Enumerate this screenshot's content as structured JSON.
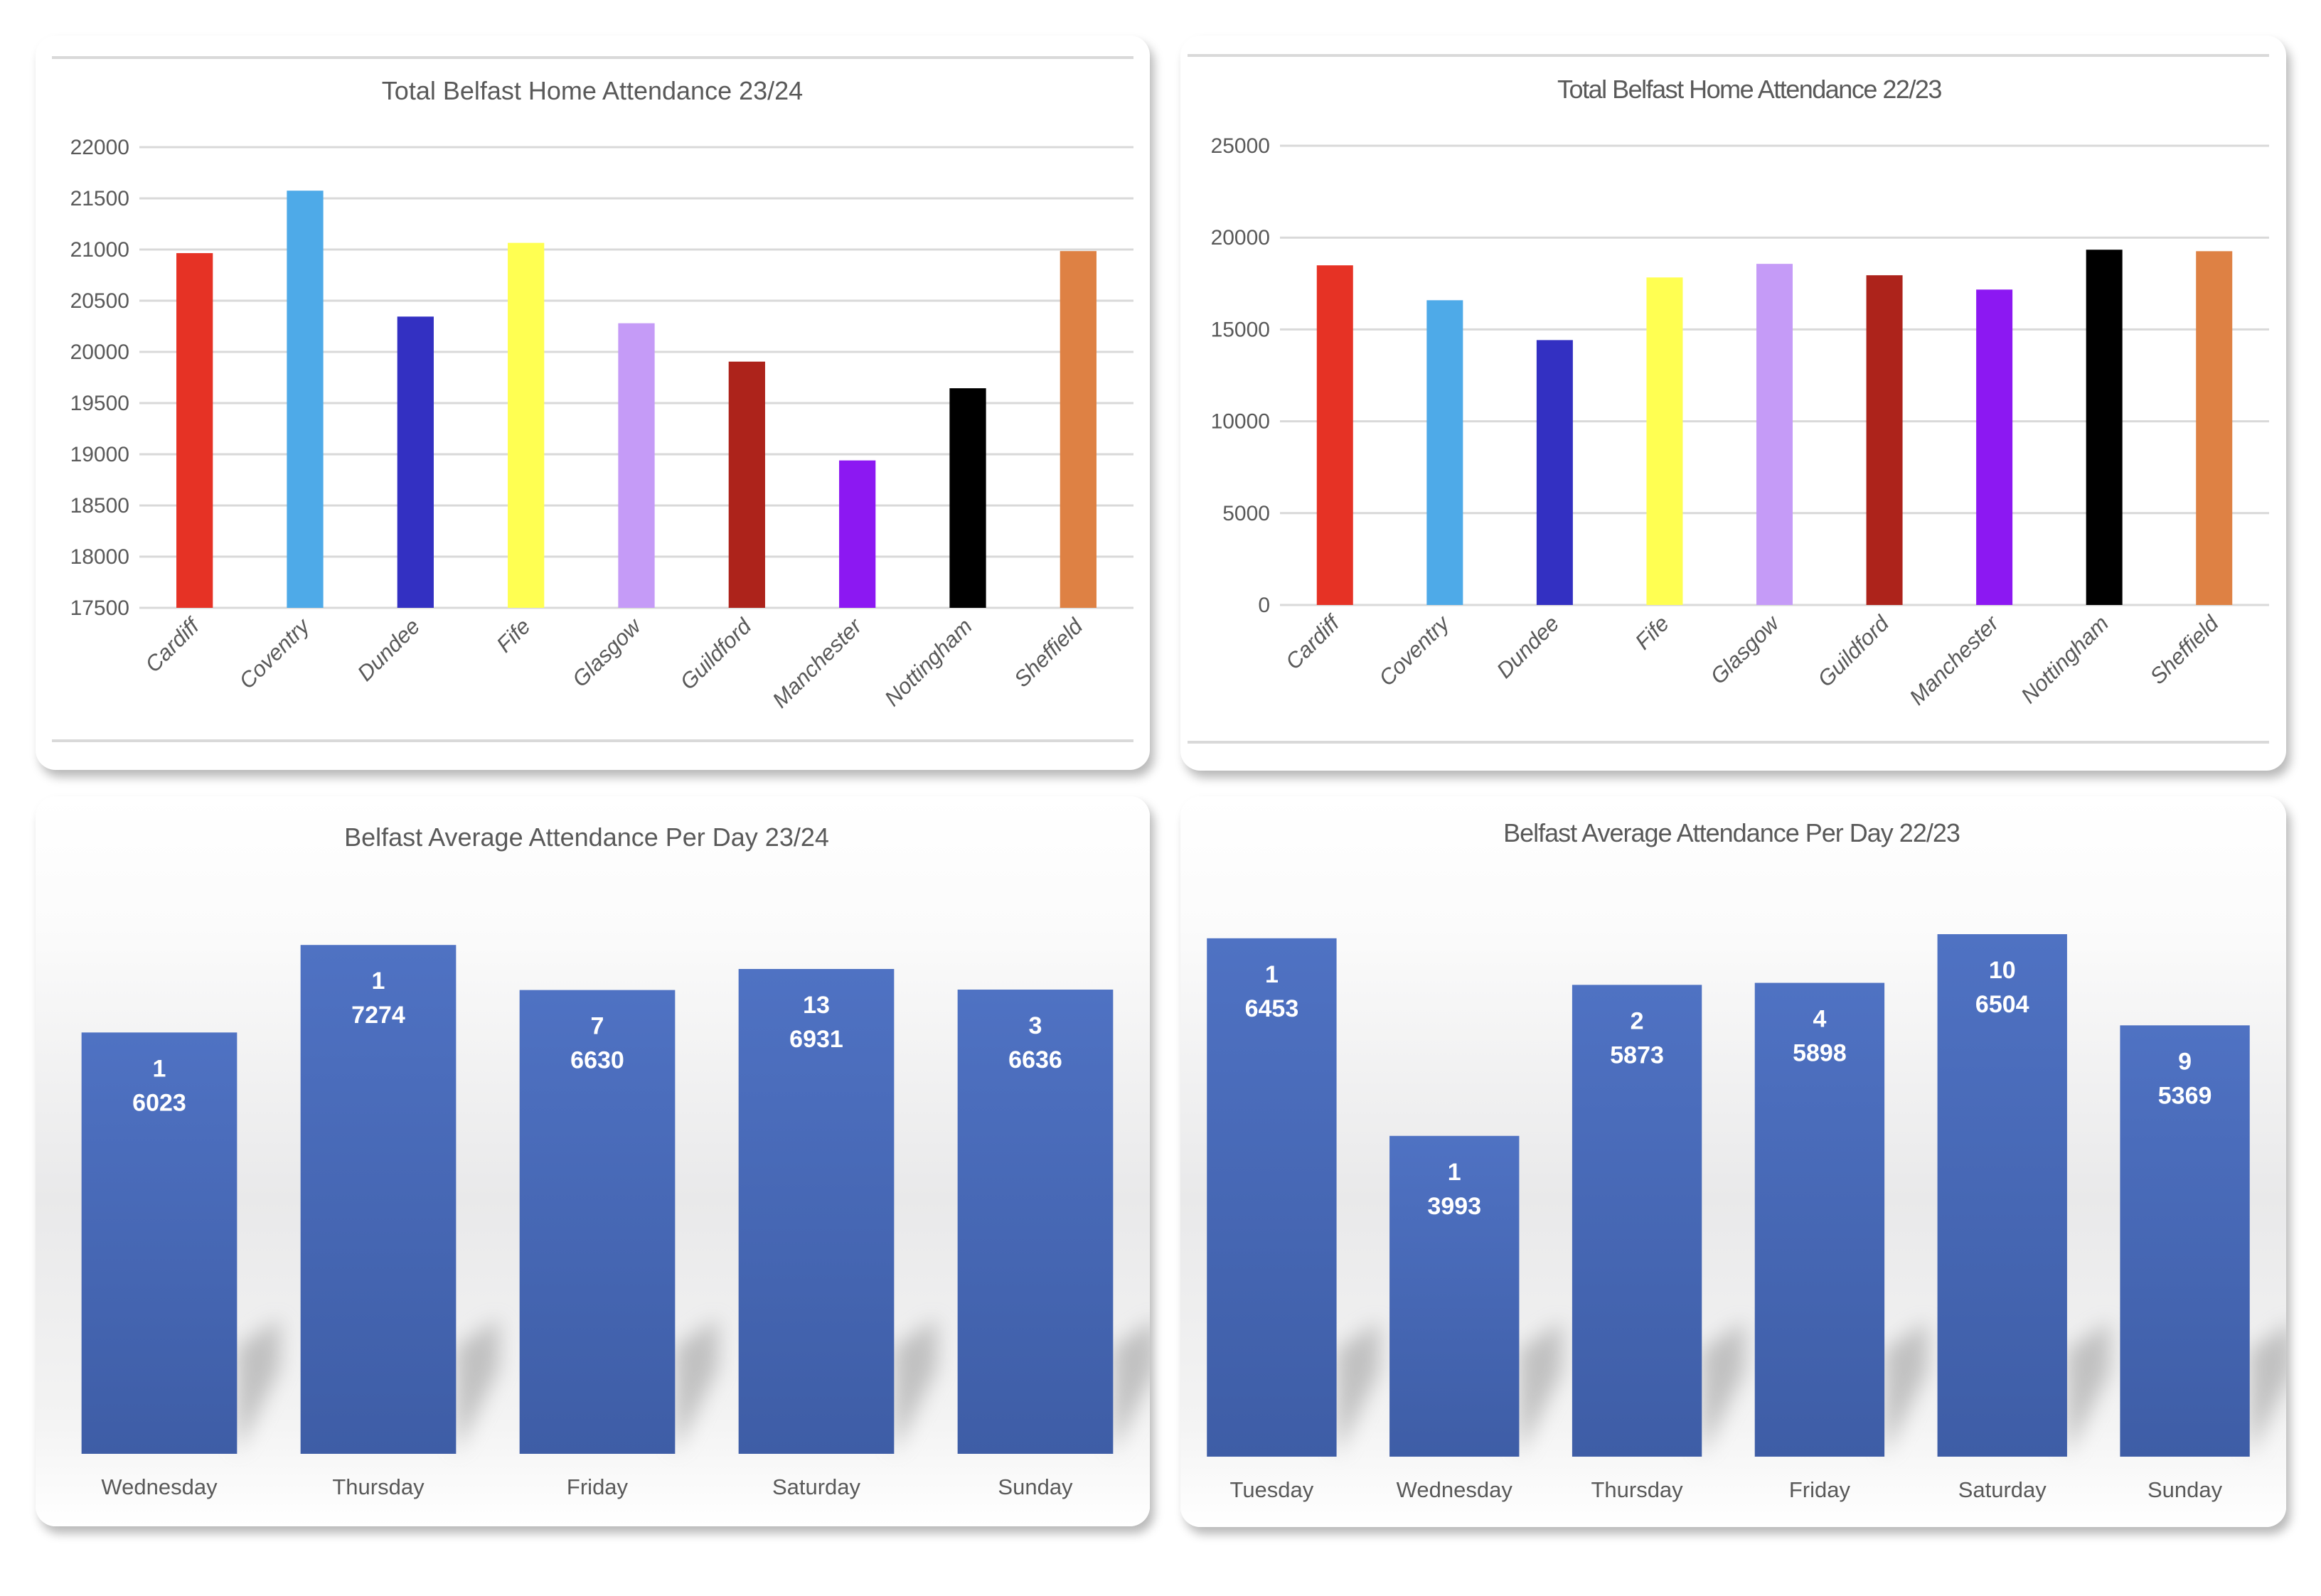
{
  "chart_data": [
    {
      "id": "tl",
      "type": "bar",
      "title": "Total Belfast Home Attendance 23/24",
      "xlabel": "",
      "ylabel": "",
      "ylim": [
        17500,
        22000
      ],
      "yticks": [
        17500,
        18000,
        18500,
        19000,
        19500,
        20000,
        20500,
        21000,
        21500,
        22000
      ],
      "grid": true,
      "legend": "none",
      "categories": [
        "Cardiff",
        "Coventry",
        "Dundee",
        "Fife",
        "Glasgow",
        "Guildford",
        "Manchester",
        "Nottingham",
        "Sheffield"
      ],
      "values": [
        20965,
        21575,
        20345,
        21065,
        20280,
        19905,
        18940,
        19645,
        20985
      ],
      "colors": [
        "#e63225",
        "#4eaae8",
        "#3330c2",
        "#ffff52",
        "#c59bf7",
        "#ad231b",
        "#8c18f2",
        "#000000",
        "#de8144"
      ]
    },
    {
      "id": "tr",
      "type": "bar",
      "title": "Total Belfast Home Attendance 22/23",
      "xlabel": "",
      "ylabel": "",
      "ylim": [
        0,
        25000
      ],
      "yticks": [
        0,
        5000,
        10000,
        15000,
        20000,
        25000
      ],
      "grid": true,
      "legend": "none",
      "categories": [
        "Cardiff",
        "Coventry",
        "Dundee",
        "Fife",
        "Glasgow",
        "Guildford",
        "Manchester",
        "Nottingham",
        "Sheffield"
      ],
      "values": [
        18490,
        16590,
        14420,
        17830,
        18570,
        17950,
        17170,
        19340,
        19260
      ],
      "colors": [
        "#e63225",
        "#4eaae8",
        "#3330c2",
        "#ffff52",
        "#c59bf7",
        "#ad231b",
        "#8c18f2",
        "#000000",
        "#de8144"
      ]
    },
    {
      "id": "bl",
      "type": "bar",
      "title": "Belfast Average Attendance Per Day 23/24",
      "xlabel": "",
      "ylabel": "",
      "ylim": [
        0,
        7274
      ],
      "grid": false,
      "legend": "none",
      "categories": [
        "Wednesday",
        "Thursday",
        "Friday",
        "Saturday",
        "Sunday"
      ],
      "values": [
        6023,
        7274,
        6630,
        6931,
        6636
      ],
      "data_labels": [
        [
          "1",
          "6023"
        ],
        [
          "1",
          "7274"
        ],
        [
          "7",
          "6630"
        ],
        [
          "13",
          "6931"
        ],
        [
          "3",
          "6636"
        ]
      ],
      "bar_color": "#4a6ab8"
    },
    {
      "id": "br",
      "type": "bar",
      "title": "Belfast Average Attendance Per Day 22/23",
      "xlabel": "",
      "ylabel": "",
      "ylim": [
        0,
        6504
      ],
      "grid": false,
      "legend": "none",
      "categories": [
        "Tuesday",
        "Wednesday",
        "Thursday",
        "Friday",
        "Saturday",
        "Sunday"
      ],
      "values": [
        6453,
        3993,
        5873,
        5898,
        6504,
        5369
      ],
      "data_labels": [
        [
          "1",
          "6453"
        ],
        [
          "1",
          "3993"
        ],
        [
          "2",
          "5873"
        ],
        [
          "4",
          "5898"
        ],
        [
          "10",
          "6504"
        ],
        [
          "9",
          "5369"
        ]
      ],
      "bar_color": "#4a6ab8"
    }
  ]
}
